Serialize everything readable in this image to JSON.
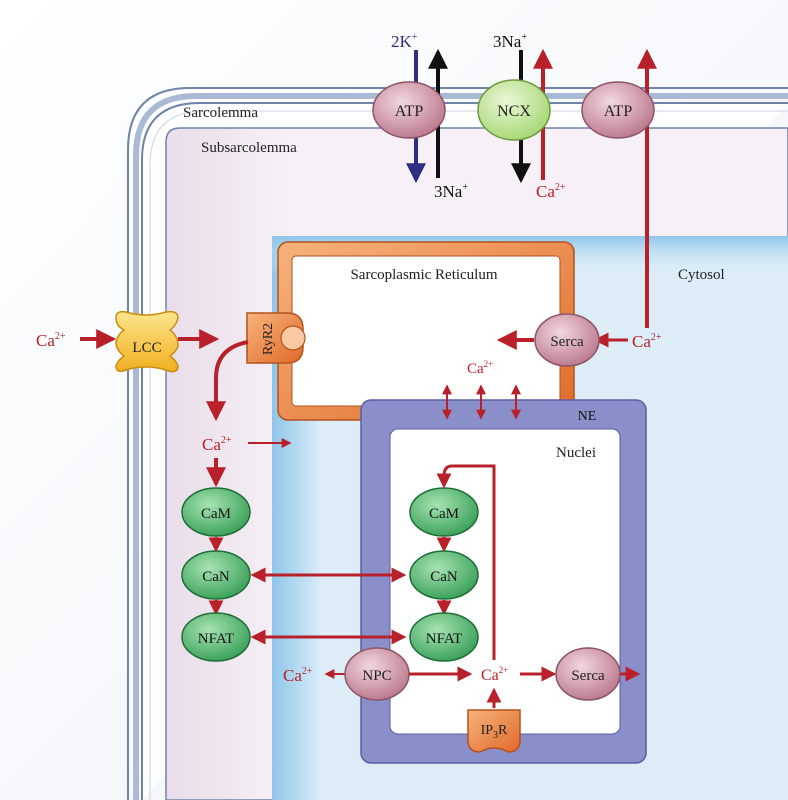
{
  "regions": {
    "sarcolemma": "Sarcolemma",
    "subsarcolemma": "Subsarcolemma",
    "sarcoplasmic_reticulum": "Sarcoplasmic Reticulum",
    "cytosol": "Cytosol",
    "nuclear_envelope": "NE",
    "nuclei": "Nuclei"
  },
  "top_pumps": {
    "atp_left": "ATP",
    "ncx": "NCX",
    "atp_right": "ATP",
    "k_in_label": "2K",
    "k_in_charge": "+",
    "na_out_label_atp": "3Na",
    "na_out_charge_atp": "+",
    "na_ncx_label": "3Na",
    "na_ncx_charge": "+",
    "ca_ncx_label": "Ca",
    "ca_ncx_charge": "2+"
  },
  "channels": {
    "lcc": "LCC",
    "ryr2": "RyR2",
    "serca_sr": "Serca",
    "serca_nuc": "Serca",
    "npc": "NPC",
    "ip3r_main": "IP",
    "ip3r_sub": "3",
    "ip3r_end": "R"
  },
  "proteins": {
    "cam_cyt": "CaM",
    "can_cyt": "CaN",
    "nfat_cyt": "NFAT",
    "cam_nuc": "CaM",
    "can_nuc": "CaN",
    "nfat_nuc": "NFAT"
  },
  "ions": {
    "ca": "Ca",
    "ca_charge": "2+"
  },
  "colors": {
    "red_arrow": "#b8202a",
    "blue_arrow": "#2e2f82",
    "pink_node": "#c9899a",
    "green_node": "#3fae5e",
    "ncx_green": "#b9e08a",
    "ne_purple": "#8a8fc9",
    "sr_orange": "#f08a3e",
    "lcc_yellow": "#f6c23a"
  }
}
